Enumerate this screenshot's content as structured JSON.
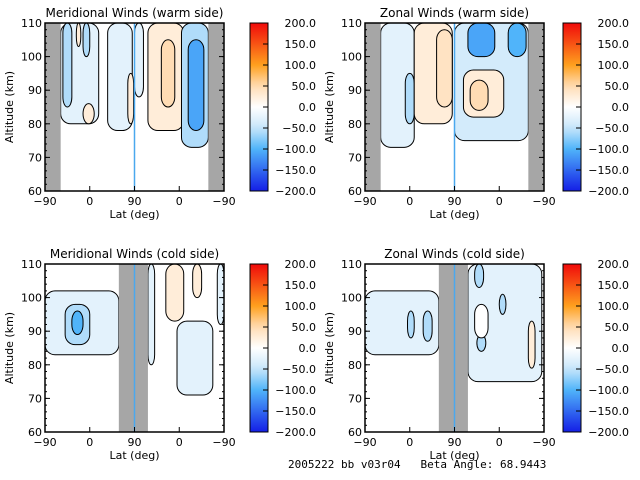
{
  "footer": {
    "run_id": "2005222 bb v03r04",
    "beta_label": "Beta Angle:",
    "beta_value": "68.9443"
  },
  "chart_data": [
    {
      "type": "heatmap",
      "subtype": "filled-contour",
      "title": "Meridional Winds (warm side)",
      "xlabel": "Lat (deg)",
      "ylabel": "Altitude (km)",
      "xticks": [
        "-90",
        "0",
        "90",
        "0",
        "-90"
      ],
      "yticks": [
        "60",
        "70",
        "80",
        "90",
        "100",
        "110"
      ],
      "ylim": [
        60,
        110
      ],
      "x_track": "ascending -90→90 then descending 90→-90 (orbit track index 0–4)",
      "no_data_regions": [
        [
          0,
          0.35
        ],
        [
          3.65,
          4
        ]
      ],
      "data_floor_km": 73,
      "colorbar": {
        "min": -200,
        "max": 200,
        "ticks": [
          "200.0",
          "150.0",
          "100.0",
          "50.0",
          "0.0",
          "-50.0",
          "-100.0",
          "-150.0",
          "-200.0"
        ]
      },
      "features": [
        {
          "x": [
            0.35,
            1.2
          ],
          "y": [
            80,
            110
          ],
          "value": -25
        },
        {
          "x": [
            0.4,
            0.6
          ],
          "y": [
            85,
            110
          ],
          "value": -60
        },
        {
          "x": [
            0.85,
            1.0
          ],
          "y": [
            100,
            110
          ],
          "value": -60
        },
        {
          "x": [
            1.4,
            1.95
          ],
          "y": [
            78,
            110
          ],
          "value": -25
        },
        {
          "x": [
            0.7,
            0.8
          ],
          "y": [
            103,
            110
          ],
          "value": 25
        },
        {
          "x": [
            0.85,
            1.1
          ],
          "y": [
            80,
            86
          ],
          "value": 25
        },
        {
          "x": [
            1.85,
            1.98
          ],
          "y": [
            80,
            95
          ],
          "value": 25
        },
        {
          "x": [
            2.0,
            2.2
          ],
          "y": [
            88,
            110
          ],
          "value": -25
        },
        {
          "x": [
            2.3,
            3.1
          ],
          "y": [
            78,
            110
          ],
          "value": 25
        },
        {
          "x": [
            2.6,
            2.9
          ],
          "y": [
            85,
            105
          ],
          "value": 50
        },
        {
          "x": [
            3.05,
            3.65
          ],
          "y": [
            73,
            110
          ],
          "value": -60
        },
        {
          "x": [
            3.2,
            3.55
          ],
          "y": [
            78,
            105
          ],
          "value": -110
        }
      ]
    },
    {
      "type": "heatmap",
      "subtype": "filled-contour",
      "title": "Zonal Winds (warm side)",
      "xlabel": "Lat (deg)",
      "ylabel": "Altitude (km)",
      "xticks": [
        "-90",
        "0",
        "90",
        "0",
        "-90"
      ],
      "yticks": [
        "60",
        "70",
        "80",
        "90",
        "100",
        "110"
      ],
      "ylim": [
        60,
        110
      ],
      "no_data_regions": [
        [
          0,
          0.35
        ],
        [
          3.65,
          4
        ]
      ],
      "data_floor_km": 73,
      "colorbar": {
        "min": -200,
        "max": 200,
        "ticks": [
          "200.0",
          "150.0",
          "100.0",
          "50.0",
          "0.0",
          "-50.0",
          "-100.0",
          "-150.0",
          "-200.0"
        ]
      },
      "features": [
        {
          "x": [
            0.35,
            1.1
          ],
          "y": [
            73,
            110
          ],
          "value": -25
        },
        {
          "x": [
            0.9,
            1.1
          ],
          "y": [
            80,
            95
          ],
          "value": -60
        },
        {
          "x": [
            1.1,
            1.95
          ],
          "y": [
            80,
            110
          ],
          "value": 25
        },
        {
          "x": [
            1.6,
            1.95
          ],
          "y": [
            85,
            108
          ],
          "value": 40
        },
        {
          "x": [
            2.0,
            3.65
          ],
          "y": [
            75,
            110
          ],
          "value": -40
        },
        {
          "x": [
            2.3,
            2.9
          ],
          "y": [
            100,
            110
          ],
          "value": -110
        },
        {
          "x": [
            3.2,
            3.6
          ],
          "y": [
            100,
            110
          ],
          "value": -100
        },
        {
          "x": [
            2.2,
            3.1
          ],
          "y": [
            82,
            96
          ],
          "value": 25
        },
        {
          "x": [
            2.35,
            2.75
          ],
          "y": [
            84,
            93
          ],
          "value": 50
        }
      ]
    },
    {
      "type": "heatmap",
      "subtype": "filled-contour",
      "title": "Meridional Winds (cold side)",
      "xlabel": "Lat (deg)",
      "ylabel": "Altitude (km)",
      "xticks": [
        "-90",
        "0",
        "90",
        "0",
        "-90"
      ],
      "yticks": [
        "60",
        "70",
        "80",
        "90",
        "100",
        "110"
      ],
      "ylim": [
        60,
        110
      ],
      "no_data_regions": [
        [
          1.65,
          2.3
        ]
      ],
      "colorbar": {
        "min": -200,
        "max": 200,
        "ticks": [
          "200.0",
          "150.0",
          "100.0",
          "50.0",
          "0.0",
          "-50.0",
          "-100.0",
          "-150.0",
          "-200.0"
        ]
      },
      "features": [
        {
          "x": [
            0.0,
            1.65
          ],
          "y": [
            83,
            102
          ],
          "value": -25
        },
        {
          "x": [
            0.45,
            1.0
          ],
          "y": [
            86,
            98
          ],
          "value": -60
        },
        {
          "x": [
            0.6,
            0.85
          ],
          "y": [
            89,
            96
          ],
          "value": -100
        },
        {
          "x": [
            2.3,
            2.45
          ],
          "y": [
            80,
            110
          ],
          "value": -25
        },
        {
          "x": [
            2.7,
            3.1
          ],
          "y": [
            93,
            110
          ],
          "value": 25
        },
        {
          "x": [
            3.3,
            3.5
          ],
          "y": [
            100,
            110
          ],
          "value": 25
        },
        {
          "x": [
            2.95,
            3.75
          ],
          "y": [
            71,
            93
          ],
          "value": -25
        },
        {
          "x": [
            3.85,
            4.0
          ],
          "y": [
            92,
            110
          ],
          "value": -25
        }
      ]
    },
    {
      "type": "heatmap",
      "subtype": "filled-contour",
      "title": "Zonal Winds (cold side)",
      "xlabel": "Lat (deg)",
      "ylabel": "Altitude (km)",
      "xticks": [
        "-90",
        "0",
        "90",
        "0",
        "-90"
      ],
      "yticks": [
        "60",
        "70",
        "80",
        "90",
        "100",
        "110"
      ],
      "ylim": [
        60,
        110
      ],
      "no_data_regions": [
        [
          1.65,
          2.3
        ]
      ],
      "colorbar": {
        "min": -200,
        "max": 200,
        "ticks": [
          "200.0",
          "150.0",
          "100.0",
          "50.0",
          "0.0",
          "-50.0",
          "-100.0",
          "-150.0",
          "-200.0"
        ]
      },
      "features": [
        {
          "x": [
            0.0,
            1.65
          ],
          "y": [
            83,
            102
          ],
          "value": -25
        },
        {
          "x": [
            1.3,
            1.5
          ],
          "y": [
            87,
            96
          ],
          "value": -60
        },
        {
          "x": [
            0.95,
            1.1
          ],
          "y": [
            88,
            96
          ],
          "value": -60
        },
        {
          "x": [
            2.3,
            3.95
          ],
          "y": [
            75,
            110
          ],
          "value": -25
        },
        {
          "x": [
            2.45,
            2.65
          ],
          "y": [
            103,
            110
          ],
          "value": -60
        },
        {
          "x": [
            3.0,
            3.15
          ],
          "y": [
            95,
            101
          ],
          "value": -60
        },
        {
          "x": [
            2.5,
            2.7
          ],
          "y": [
            84,
            89
          ],
          "value": -60
        },
        {
          "x": [
            2.45,
            2.75
          ],
          "y": [
            88,
            98
          ],
          "value": 0
        },
        {
          "x": [
            3.65,
            3.8
          ],
          "y": [
            79,
            93
          ],
          "value": 25
        }
      ]
    }
  ]
}
